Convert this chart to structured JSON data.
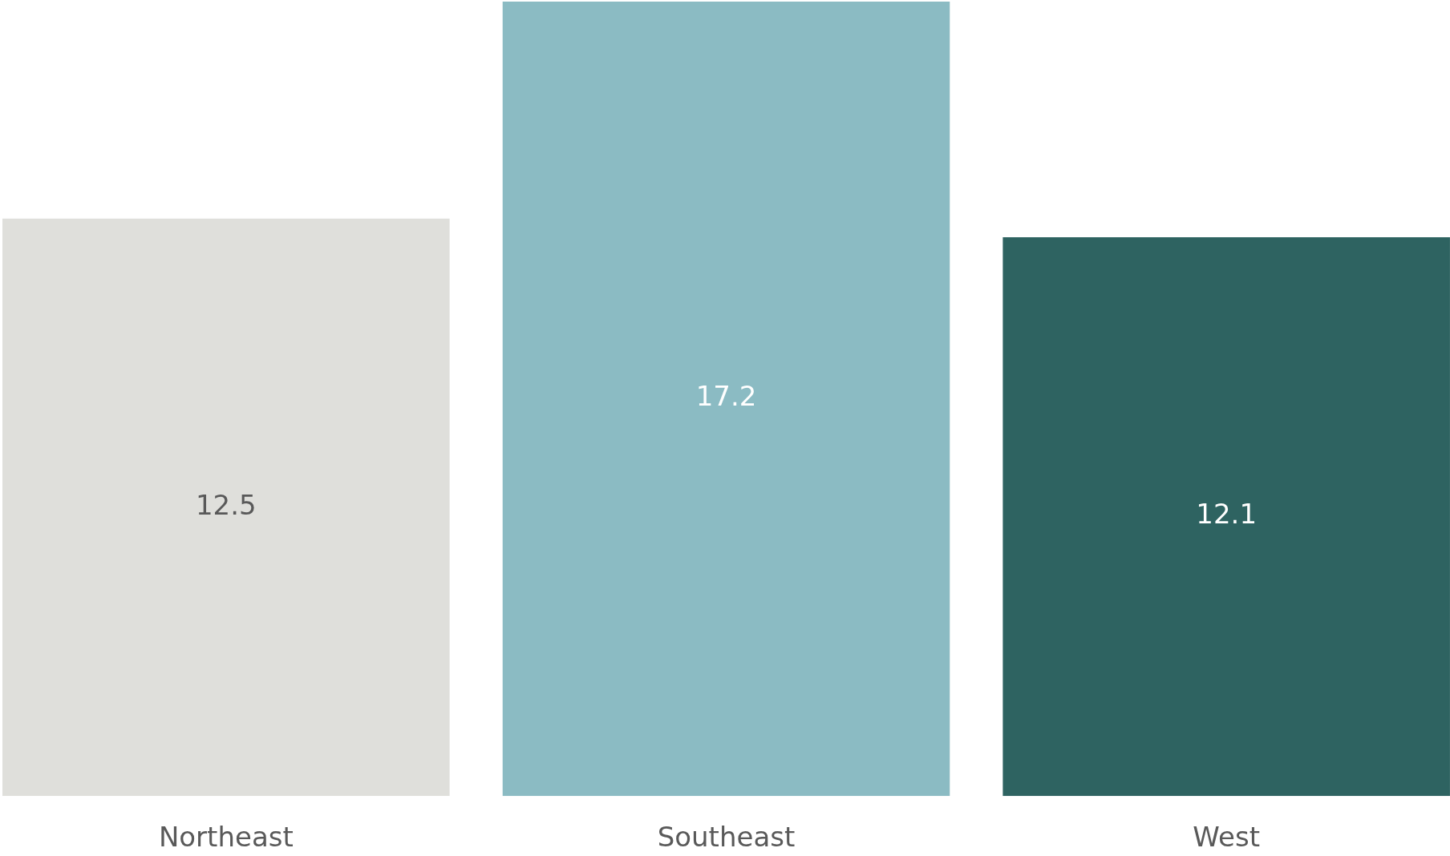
{
  "chart_data": {
    "type": "bar",
    "categories": [
      "Northeast",
      "Southeast",
      "West"
    ],
    "values": [
      12.5,
      17.2,
      12.1
    ],
    "colors": [
      "#dfdfdb",
      "#8bbbc3",
      "#2e6361"
    ],
    "data_labels": true,
    "legend": false,
    "tick_labels": "x"
  }
}
